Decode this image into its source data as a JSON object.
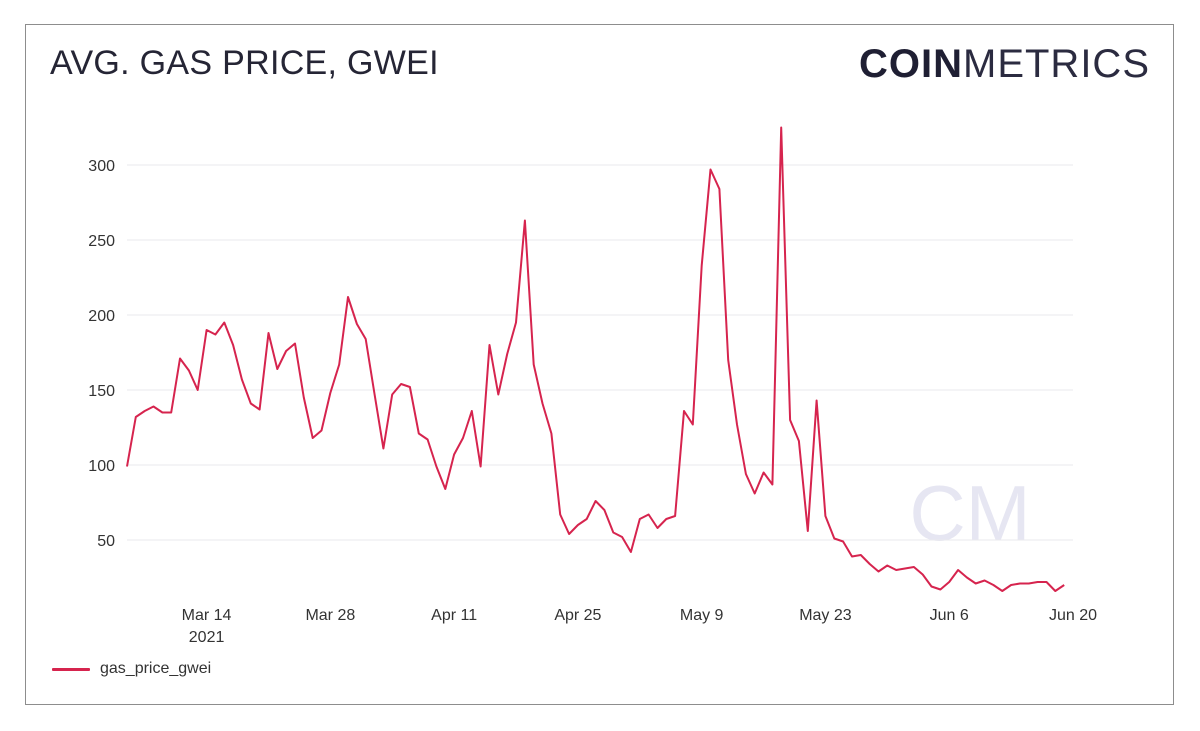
{
  "header": {
    "title": "AVG. GAS PRICE, GWEI",
    "logo_bold": "COIN",
    "logo_light": "METRICS"
  },
  "watermark": {
    "text": "CM"
  },
  "legend": {
    "label": "gas_price_gwei"
  },
  "colors": {
    "series": "#d6244e",
    "grid": "#e9e9ee",
    "watermark": "#e6e6f2"
  },
  "chart_data": {
    "type": "line",
    "title": "AVG. GAS PRICE, GWEI",
    "xlabel": "",
    "ylabel": "",
    "ylim": [
      10,
      330
    ],
    "yticks": [
      50,
      100,
      150,
      200,
      250,
      300
    ],
    "xlim_days": [
      0,
      103
    ],
    "xticks": [
      {
        "day": 9,
        "label": "Mar 14",
        "sublabel": "2021"
      },
      {
        "day": 23,
        "label": "Mar 28",
        "sublabel": ""
      },
      {
        "day": 37,
        "label": "Apr 11",
        "sublabel": ""
      },
      {
        "day": 51,
        "label": "Apr 25",
        "sublabel": ""
      },
      {
        "day": 65,
        "label": "May 9",
        "sublabel": ""
      },
      {
        "day": 79,
        "label": "May 23",
        "sublabel": ""
      },
      {
        "day": 93,
        "label": "Jun 6",
        "sublabel": ""
      },
      {
        "day": 107,
        "label": "Jun 20",
        "sublabel": ""
      }
    ],
    "series": [
      {
        "name": "gas_price_gwei",
        "start_date": "2021-03-05",
        "values": [
          99,
          132,
          136,
          139,
          135,
          135,
          171,
          163,
          150,
          190,
          187,
          195,
          180,
          157,
          141,
          137,
          188,
          164,
          176,
          181,
          145,
          118,
          123,
          148,
          167,
          212,
          194,
          184,
          147,
          111,
          147,
          154,
          152,
          121,
          117,
          99,
          84,
          107,
          118,
          136,
          99,
          180,
          147,
          174,
          195,
          263,
          167,
          141,
          121,
          67,
          54,
          60,
          64,
          76,
          70,
          55,
          52,
          42,
          64,
          67,
          58,
          64,
          66,
          136,
          127,
          233,
          297,
          284,
          170,
          127,
          94,
          81,
          95,
          87,
          325,
          130,
          116,
          56,
          143,
          66,
          51,
          49,
          39,
          40,
          34,
          29,
          33,
          30,
          31,
          32,
          27,
          19,
          17,
          22,
          30,
          25,
          21,
          23,
          20,
          16,
          20,
          21,
          21,
          22,
          22,
          16,
          20
        ]
      }
    ]
  }
}
